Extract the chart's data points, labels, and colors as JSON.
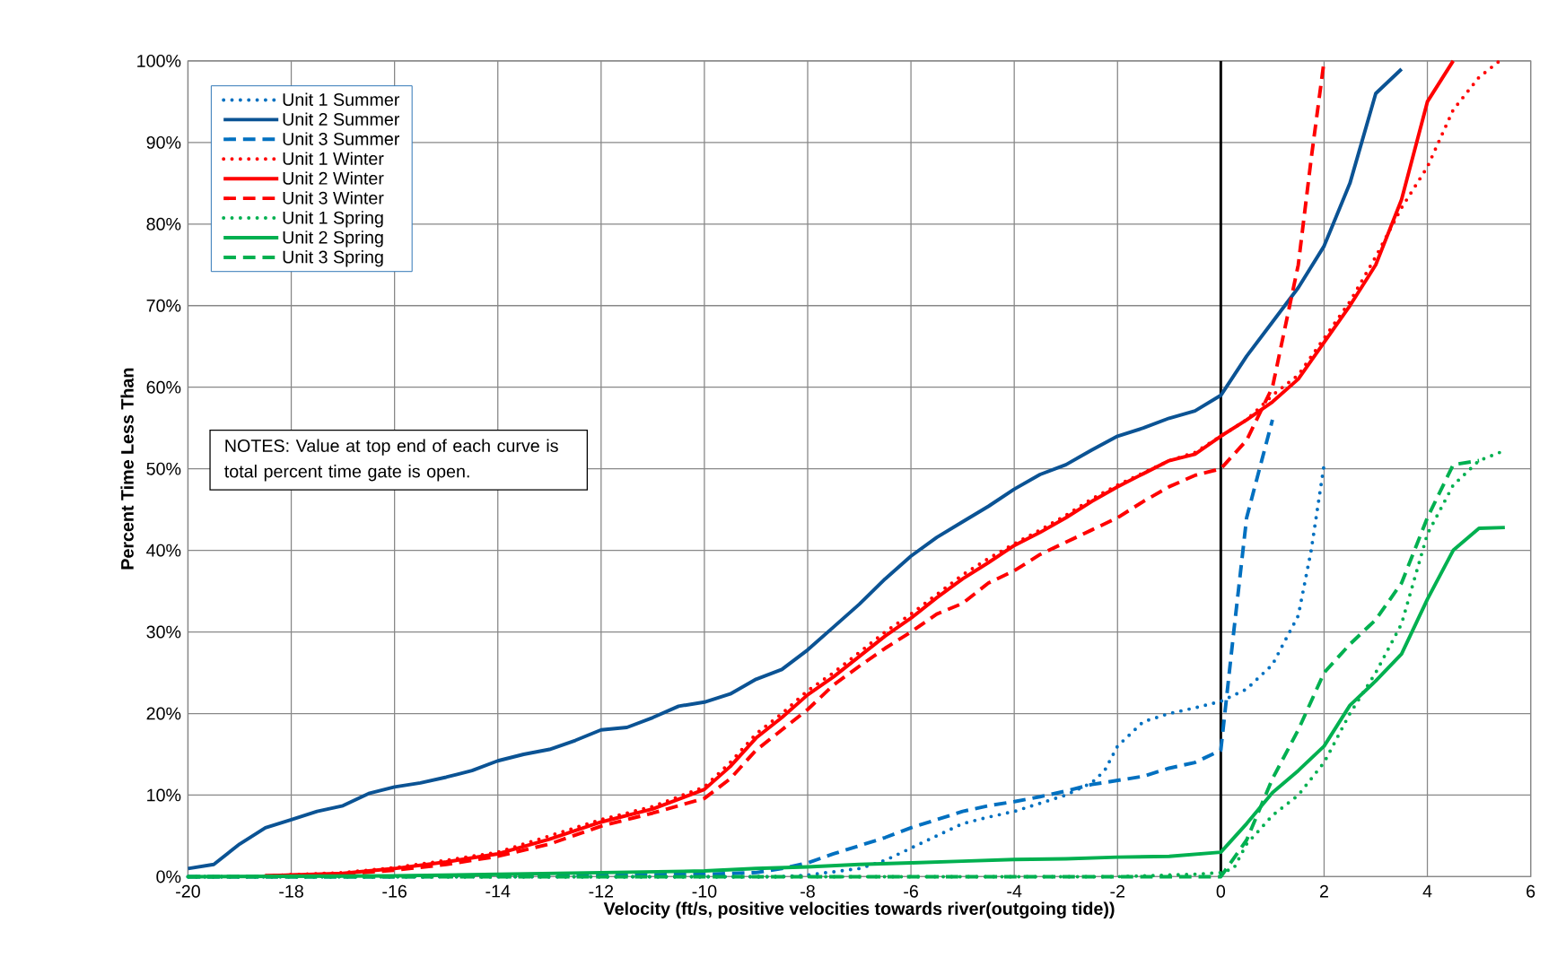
{
  "chart_data": {
    "type": "line",
    "xlabel": "Velocity (ft/s, positive velocities towards river(outgoing tide))",
    "ylabel": "Percent Time Less Than",
    "xlim": [
      -20,
      6
    ],
    "ylim": [
      0,
      100
    ],
    "xticks": [
      -20,
      -18,
      -16,
      -14,
      -12,
      -10,
      -8,
      -6,
      -4,
      -2,
      0,
      2,
      4,
      6
    ],
    "yticks": [
      {
        "value": 0,
        "label": "0%"
      },
      {
        "value": 10,
        "label": "10%"
      },
      {
        "value": 20,
        "label": "20%"
      },
      {
        "value": 30,
        "label": "30%"
      },
      {
        "value": 40,
        "label": "40%"
      },
      {
        "value": 50,
        "label": "50%"
      },
      {
        "value": 60,
        "label": "60%"
      },
      {
        "value": 70,
        "label": "70%"
      },
      {
        "value": 80,
        "label": "80%"
      },
      {
        "value": 90,
        "label": "90%"
      },
      {
        "value": 100,
        "label": "100%"
      }
    ],
    "grid": true,
    "legend": "top left",
    "marker": "none",
    "ref_lines": [
      {
        "axis": "x",
        "value": 0,
        "color": "#000000"
      }
    ],
    "annotations": [
      "NOTES: Value at top end of each curve is total percent time gate is open."
    ],
    "series": [
      {
        "name": "Unit 1 Summer",
        "color": "#0070c0",
        "line_style": "dotted",
        "x": [
          -20,
          -16,
          -12,
          -10,
          -8.5,
          -8,
          -7.5,
          -7,
          -6.5,
          -6,
          -5.5,
          -5,
          -4.5,
          -4,
          -3.5,
          -3,
          -2.5,
          -2.25,
          -2,
          -1.5,
          -1,
          -0.5,
          0,
          0.5,
          1,
          1.5,
          1.75,
          2
        ],
        "values": [
          0,
          0,
          0,
          0,
          0,
          0.2,
          0.6,
          1,
          2,
          3.5,
          5,
          6.5,
          7.3,
          8,
          9,
          10,
          11.5,
          13,
          16,
          19,
          20,
          20.7,
          21.5,
          23,
          26,
          32,
          40,
          50.5
        ]
      },
      {
        "name": "Unit 2 Summer",
        "color": "#0b5394",
        "line_style": "solid",
        "x": [
          -20,
          -19.5,
          -19,
          -18.5,
          -18,
          -17.5,
          -17,
          -16.5,
          -16,
          -15.5,
          -15,
          -14.5,
          -14,
          -13.5,
          -13,
          -12.5,
          -12,
          -11.5,
          -11,
          -10.5,
          -10,
          -9.5,
          -9,
          -8.5,
          -8,
          -7.5,
          -7,
          -6.5,
          -6,
          -5.5,
          -5,
          -4.5,
          -4,
          -3.5,
          -3,
          -2.5,
          -2,
          -1.5,
          -1,
          -0.5,
          0,
          0.5,
          1,
          1.5,
          2,
          2.5,
          3,
          3.5
        ],
        "values": [
          1,
          1.5,
          4,
          6,
          7,
          8,
          8.7,
          10.2,
          11,
          11.5,
          12.2,
          13,
          14.2,
          15,
          15.6,
          16.7,
          18,
          18.3,
          19.5,
          20.9,
          21.4,
          22.4,
          24.2,
          25.4,
          27.8,
          30.6,
          33.4,
          36.5,
          39.3,
          41.6,
          43.5,
          45.4,
          47.5,
          49.3,
          50.5,
          52.3,
          54,
          55,
          56.2,
          57.1,
          59,
          63.8,
          68,
          72.2,
          77.3,
          85,
          96,
          99
        ]
      },
      {
        "name": "Unit 3 Summer",
        "color": "#0070c0",
        "line_style": "dashed",
        "x": [
          -20,
          -16,
          -12,
          -10,
          -9,
          -8.5,
          -8,
          -7.5,
          -7,
          -6.5,
          -6,
          -5.5,
          -5,
          -4.5,
          -4,
          -3.5,
          -3,
          -2.5,
          -2,
          -1.5,
          -1,
          -0.5,
          0,
          0.25,
          0.5,
          0.75,
          1
        ],
        "values": [
          0,
          0,
          0.2,
          0.3,
          0.5,
          1,
          1.7,
          2.8,
          3.8,
          4.8,
          6,
          7,
          8,
          8.7,
          9.2,
          9.8,
          10.5,
          11.3,
          11.8,
          12.3,
          13.3,
          14,
          15.5,
          30,
          44,
          50,
          56
        ]
      },
      {
        "name": "Unit 1 Winter",
        "color": "#ff0000",
        "line_style": "dotted",
        "x": [
          -18.5,
          -17,
          -16,
          -15,
          -14,
          -13,
          -12,
          -11,
          -10,
          -9.5,
          -9,
          -8.5,
          -8,
          -7.5,
          -7,
          -6.5,
          -6,
          -5.5,
          -5,
          -4.5,
          -4,
          -3.5,
          -3,
          -2.5,
          -2,
          -1.5,
          -1,
          -0.5,
          0,
          0.5,
          1,
          1.5,
          2,
          2.5,
          3,
          3.5,
          4,
          4.5,
          5,
          5.4
        ],
        "values": [
          0.1,
          0.5,
          1.1,
          2,
          3,
          5,
          7,
          8.6,
          11,
          14,
          17.5,
          20,
          22.8,
          25,
          27.5,
          30,
          32.2,
          34.6,
          37,
          39,
          40.8,
          42.5,
          44.3,
          46.3,
          48,
          49.5,
          51,
          52,
          54,
          56,
          59,
          61.5,
          66,
          70.5,
          76,
          82,
          87,
          94,
          98,
          100
        ]
      },
      {
        "name": "Unit 2 Winter",
        "color": "#ff0000",
        "line_style": "solid",
        "x": [
          -18.5,
          -17,
          -16,
          -15,
          -14,
          -13,
          -12,
          -11,
          -10,
          -9.5,
          -9,
          -8.5,
          -8,
          -7.5,
          -7,
          -6.5,
          -6,
          -5.5,
          -5,
          -4.5,
          -4,
          -3.5,
          -3,
          -2.5,
          -2,
          -1.5,
          -1,
          -0.5,
          0,
          0.5,
          1,
          1.5,
          2,
          2.5,
          3,
          3.5,
          4,
          4.5
        ],
        "values": [
          0.1,
          0.4,
          1,
          1.8,
          2.8,
          4.6,
          6.7,
          8.3,
          10.7,
          13.5,
          17,
          19.5,
          22.3,
          24.5,
          27,
          29.5,
          31.7,
          34.2,
          36.5,
          38.5,
          40.6,
          42.2,
          44,
          46,
          47.8,
          49.4,
          51,
          51.8,
          54,
          56,
          58.2,
          61,
          65.5,
          70,
          75,
          83,
          95,
          100
        ]
      },
      {
        "name": "Unit 3 Winter",
        "color": "#ff0000",
        "line_style": "dashed",
        "x": [
          -18.5,
          -17,
          -16,
          -15,
          -14,
          -13,
          -12,
          -11,
          -10,
          -9.5,
          -9,
          -8.5,
          -8,
          -7.5,
          -7,
          -6.5,
          -6,
          -5.5,
          -5,
          -4.5,
          -4,
          -3.5,
          -3,
          -2.5,
          -2,
          -1.5,
          -1,
          -0.5,
          0,
          0.5,
          1,
          1.5,
          1.75,
          2
        ],
        "values": [
          0.1,
          0.3,
          0.8,
          1.5,
          2.5,
          4,
          6.2,
          7.8,
          9.6,
          12,
          15.5,
          18,
          20.5,
          23.5,
          25.8,
          28,
          30,
          32.2,
          33.5,
          36,
          37.5,
          39.5,
          41,
          42.5,
          44,
          46,
          47.8,
          49.2,
          50,
          53.5,
          60,
          75,
          88,
          100
        ]
      },
      {
        "name": "Unit 1 Spring",
        "color": "#00b050",
        "line_style": "dotted",
        "x": [
          -20,
          -16,
          -12,
          -8,
          -4,
          -2,
          -0.5,
          0,
          0.25,
          0.5,
          1,
          1.5,
          2,
          2.5,
          3,
          3.5,
          4,
          4.5,
          5,
          5.4
        ],
        "values": [
          0,
          0,
          0,
          0,
          0,
          0,
          0.3,
          0.5,
          1,
          4,
          7.5,
          10,
          14,
          20,
          25,
          31,
          42,
          48,
          51,
          52
        ]
      },
      {
        "name": "Unit 2 Spring",
        "color": "#00b050",
        "line_style": "solid",
        "x": [
          -20,
          -16,
          -14,
          -12,
          -10,
          -9,
          -8,
          -7,
          -6,
          -5,
          -4,
          -3,
          -2,
          -1,
          0,
          0.5,
          1,
          1.5,
          2,
          2.5,
          3,
          3.5,
          4,
          4.5,
          5,
          5.5
        ],
        "values": [
          0,
          0.1,
          0.3,
          0.5,
          0.7,
          1,
          1.2,
          1.5,
          1.7,
          1.9,
          2.1,
          2.2,
          2.4,
          2.5,
          3,
          6.5,
          10.3,
          13,
          16,
          21,
          24,
          27.3,
          34,
          40,
          42.7,
          42.8
        ]
      },
      {
        "name": "Unit 3 Spring",
        "color": "#00b050",
        "line_style": "dashed",
        "x": [
          -20,
          -16,
          -12,
          -8,
          -4,
          -2,
          0,
          0.5,
          1,
          1.5,
          2,
          2.5,
          3,
          3.5,
          4,
          4.5,
          5
        ],
        "values": [
          0,
          0,
          0,
          0,
          0,
          0,
          0,
          4.5,
          12,
          18,
          25,
          28.5,
          31.5,
          36,
          44,
          50.5,
          51
        ]
      }
    ]
  }
}
